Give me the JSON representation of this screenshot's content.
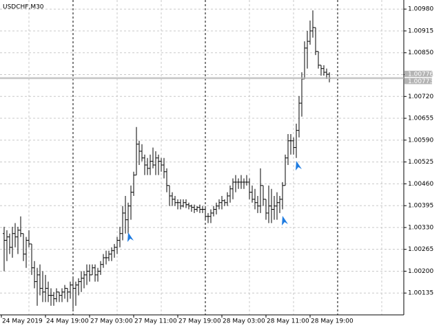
{
  "chart_data": {
    "type": "ohlc",
    "title": "USDCHF,M30",
    "color": "#000000",
    "categories": [
      "24 May 2019",
      null,
      null,
      null,
      null,
      null,
      null,
      null,
      null,
      null,
      null,
      null,
      null,
      null,
      null,
      null,
      "24 May 19:00",
      null,
      null,
      null,
      null,
      null,
      null,
      null,
      null,
      null,
      null,
      null,
      null,
      null,
      null,
      null,
      "27 May 03:00",
      null,
      null,
      null,
      null,
      null,
      null,
      null,
      null,
      null,
      null,
      null,
      null,
      null,
      null,
      null,
      "27 May 11:00",
      null,
      null,
      null,
      null,
      null,
      null,
      null,
      null,
      null,
      null,
      null,
      null,
      null,
      null,
      null,
      "27 May 19:00",
      null,
      null,
      null,
      null,
      null,
      null,
      null,
      null,
      null,
      null,
      null,
      null,
      null,
      null,
      null,
      "28 May 03:00",
      null,
      null,
      null,
      null,
      null,
      null,
      null,
      null,
      null,
      null,
      null,
      null,
      null,
      null,
      null,
      "28 May 11:00",
      null,
      null,
      null,
      null,
      null,
      null,
      null,
      null,
      null,
      null,
      null,
      null,
      null,
      null,
      null,
      "28 May 19:00",
      null,
      null,
      null,
      null,
      null,
      null
    ],
    "open": [
      1.00312,
      1.00292,
      1.00302,
      1.00271,
      1.00312,
      1.00302,
      1.00322,
      1.00312,
      1.00251,
      1.00292,
      1.00281,
      1.0021,
      1.00169,
      1.00189,
      1.00149,
      1.00138,
      1.00149,
      1.00128,
      1.00128,
      1.00118,
      1.00138,
      1.00128,
      1.00138,
      1.00149,
      1.00138,
      1.00159,
      1.00149,
      1.00159,
      1.00169,
      1.00179,
      1.00189,
      1.002,
      1.00189,
      1.0021,
      1.00189,
      1.002,
      1.0022,
      1.0024,
      1.0024,
      1.00251,
      1.00261,
      1.00271,
      1.00292,
      1.00312,
      1.00373,
      1.00353,
      1.00394,
      1.00435,
      1.00486,
      1.00578,
      1.00557,
      1.00537,
      1.00516,
      1.00506,
      1.00527,
      1.00516,
      1.00537,
      1.00527,
      1.00516,
      1.00496,
      1.00455,
      1.00424,
      1.00414,
      1.00404,
      1.00404,
      1.00394,
      1.00404,
      1.00398,
      1.00394,
      1.0039,
      1.00384,
      1.0039,
      1.00384,
      1.00384,
      1.00363,
      1.00363,
      1.00373,
      1.00384,
      1.00394,
      1.00404,
      1.0041,
      1.00404,
      1.00424,
      1.00445,
      1.00465,
      1.00465,
      1.00465,
      1.00465,
      1.00465,
      1.00465,
      1.00435,
      1.00414,
      1.00404,
      1.00394,
      1.00455,
      1.00414,
      1.00373,
      1.00394,
      1.00384,
      1.00394,
      1.00404,
      1.00414,
      1.00455,
      1.00537,
      1.00588,
      1.00588,
      1.00568,
      1.00619,
      1.007,
      1.00772,
      1.00864,
      1.00884,
      1.00915,
      1.00925,
      1.00854,
      1.00813,
      1.00803,
      1.00792,
      1.00786
    ],
    "high": [
      1.00332,
      1.00322,
      1.00312,
      1.00332,
      1.00343,
      1.00332,
      1.00363,
      1.00312,
      1.00302,
      1.00322,
      1.00281,
      1.0023,
      1.0021,
      1.0022,
      1.002,
      1.00189,
      1.00169,
      1.00149,
      1.00138,
      1.00149,
      1.00138,
      1.00149,
      1.00159,
      1.00149,
      1.00169,
      1.00179,
      1.00169,
      1.00179,
      1.002,
      1.002,
      1.0022,
      1.0022,
      1.0022,
      1.0022,
      1.0021,
      1.0023,
      1.00251,
      1.00261,
      1.00261,
      1.00271,
      1.00281,
      1.00302,
      1.00332,
      1.00394,
      1.00424,
      1.00404,
      1.00455,
      1.00496,
      1.00629,
      1.00588,
      1.00578,
      1.00547,
      1.00537,
      1.00547,
      1.00568,
      1.00557,
      1.00547,
      1.00537,
      1.00537,
      1.00506,
      1.00455,
      1.00435,
      1.00424,
      1.00414,
      1.00414,
      1.00414,
      1.00414,
      1.00404,
      1.00398,
      1.00398,
      1.00394,
      1.00398,
      1.00394,
      1.00394,
      1.00373,
      1.00384,
      1.00394,
      1.00404,
      1.00414,
      1.00424,
      1.00414,
      1.00435,
      1.00455,
      1.00476,
      1.00486,
      1.00476,
      1.00486,
      1.00476,
      1.00486,
      1.00476,
      1.00455,
      1.00445,
      1.00424,
      1.00506,
      1.00455,
      1.00414,
      1.00455,
      1.00445,
      1.00424,
      1.00435,
      1.00424,
      1.00465,
      1.00547,
      1.00608,
      1.00608,
      1.00598,
      1.00639,
      1.00721,
      1.00792,
      1.00884,
      1.00915,
      1.00946,
      1.00976,
      1.00925,
      1.00854,
      1.00813,
      1.00813,
      1.00803,
      1.00792
    ],
    "low": [
      1.002,
      1.0023,
      1.00251,
      1.0024,
      1.00271,
      1.00251,
      1.00302,
      1.0023,
      1.0021,
      1.00271,
      1.00189,
      1.00149,
      1.00097,
      1.00128,
      1.00108,
      1.00108,
      1.00108,
      1.00097,
      1.00097,
      1.00108,
      1.00108,
      1.00108,
      1.00118,
      1.00108,
      1.00118,
      1.00087,
      1.00097,
      1.00128,
      1.00138,
      1.00149,
      1.00159,
      1.00169,
      1.00189,
      1.00169,
      1.00169,
      1.00189,
      1.0021,
      1.0022,
      1.0023,
      1.0023,
      1.0024,
      1.00251,
      1.00271,
      1.00292,
      1.00312,
      1.00312,
      1.00353,
      1.00424,
      1.00486,
      1.00516,
      1.00527,
      1.00486,
      1.00486,
      1.00486,
      1.00506,
      1.00486,
      1.00486,
      1.00496,
      1.00476,
      1.00435,
      1.00394,
      1.00394,
      1.00394,
      1.00384,
      1.00384,
      1.0039,
      1.00388,
      1.00384,
      1.00377,
      1.00373,
      1.00377,
      1.00373,
      1.00373,
      1.00353,
      1.00343,
      1.00343,
      1.00363,
      1.00369,
      1.00384,
      1.00384,
      1.00394,
      1.00394,
      1.00404,
      1.00414,
      1.00435,
      1.00445,
      1.00445,
      1.00445,
      1.00455,
      1.00414,
      1.00404,
      1.00384,
      1.00373,
      1.00373,
      1.00394,
      1.00353,
      1.00343,
      1.00343,
      1.00353,
      1.00353,
      1.00373,
      1.00384,
      1.00455,
      1.00516,
      1.00547,
      1.00547,
      1.00537,
      1.00598,
      1.0066,
      1.00772,
      1.00803,
      1.00874,
      1.00895,
      1.00843,
      1.00803,
      1.00782,
      1.00782,
      1.00772,
      1.00762
    ],
    "close": [
      1.00292,
      1.00302,
      1.00271,
      1.00312,
      1.00302,
      1.00322,
      1.00312,
      1.00251,
      1.00292,
      1.00281,
      1.0021,
      1.00169,
      1.00189,
      1.00149,
      1.00138,
      1.00149,
      1.00128,
      1.00128,
      1.00118,
      1.00138,
      1.00128,
      1.00138,
      1.00149,
      1.00138,
      1.00159,
      1.00149,
      1.00159,
      1.00169,
      1.00179,
      1.00189,
      1.002,
      1.00189,
      1.0021,
      1.00189,
      1.002,
      1.0022,
      1.0024,
      1.0024,
      1.00251,
      1.00261,
      1.00271,
      1.00292,
      1.00312,
      1.00373,
      1.00353,
      1.00394,
      1.00435,
      1.00486,
      1.00578,
      1.00557,
      1.00537,
      1.00516,
      1.00506,
      1.00527,
      1.00516,
      1.00537,
      1.00527,
      1.00516,
      1.00496,
      1.00455,
      1.00424,
      1.00414,
      1.00404,
      1.00404,
      1.00394,
      1.00404,
      1.00398,
      1.00394,
      1.0039,
      1.00384,
      1.0039,
      1.00384,
      1.00384,
      1.00363,
      1.00363,
      1.00373,
      1.00384,
      1.00394,
      1.00404,
      1.0041,
      1.00404,
      1.00424,
      1.00445,
      1.00465,
      1.00465,
      1.00465,
      1.00465,
      1.00465,
      1.00465,
      1.00435,
      1.00414,
      1.00404,
      1.00394,
      1.00455,
      1.00414,
      1.00373,
      1.00394,
      1.00384,
      1.00394,
      1.00404,
      1.00414,
      1.00455,
      1.00537,
      1.00588,
      1.00588,
      1.00568,
      1.00619,
      1.007,
      1.00772,
      1.00864,
      1.00884,
      1.00915,
      1.00925,
      1.00854,
      1.00813,
      1.00803,
      1.00792,
      1.00786,
      1.00773
    ],
    "ylim": [
      1.0007,
      1.01007
    ],
    "yticks": [
      1.00135,
      {
        "value": 1.002,
        "label": "1.00200"
      },
      1.00265,
      {
        "value": 1.0033,
        "label": "1.00330"
      },
      1.00395,
      {
        "value": 1.0046,
        "label": "1.00460"
      },
      1.00525,
      {
        "value": 1.0059,
        "label": "1.00590"
      },
      1.00655,
      {
        "value": 1.0072,
        "label": "1.00720"
      },
      1.00785,
      {
        "value": 1.0085,
        "label": "1.00850"
      },
      1.00915,
      {
        "value": 1.0098,
        "label": "1.00980"
      }
    ],
    "ask": 1.00776,
    "bid": 1.00773,
    "grid": true
  }
}
